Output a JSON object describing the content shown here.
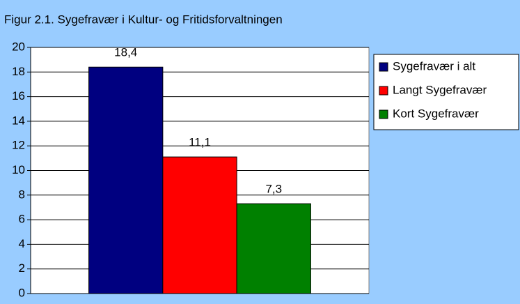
{
  "chart_data": {
    "type": "bar",
    "title": "Figur 2.1. Sygefravær i Kultur- og Fritidsforvaltningen",
    "categories": [
      null
    ],
    "series": [
      {
        "name": "Sygefravær i alt",
        "color": "#000080",
        "values": [
          18.4
        ],
        "value_labels": [
          "18,4"
        ]
      },
      {
        "name": "Langt Sygefravær",
        "color": "#ff0000",
        "values": [
          11.1
        ],
        "value_labels": [
          "11,1"
        ]
      },
      {
        "name": "Kort Sygefravær",
        "color": "#008000",
        "values": [
          7.3
        ],
        "value_labels": [
          "7,3"
        ]
      }
    ],
    "ylim": [
      0,
      20
    ],
    "yticks": [
      0,
      2,
      4,
      6,
      8,
      10,
      12,
      14,
      16,
      18,
      20
    ],
    "grid": true,
    "legend": "right"
  }
}
